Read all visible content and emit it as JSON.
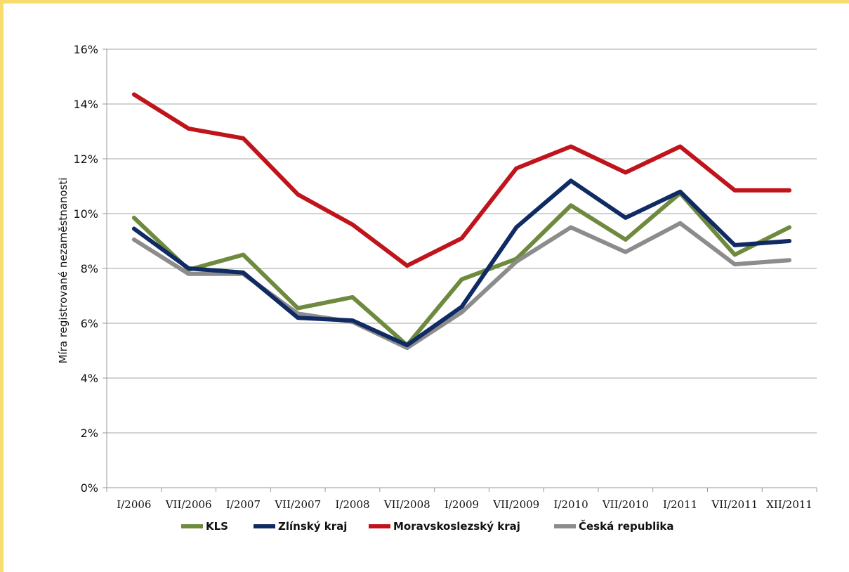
{
  "chart_data": {
    "type": "line",
    "title": "",
    "xlabel": "",
    "ylabel": "Míra registrované nezaměstnanosti",
    "categories": [
      "I/2006",
      "VII/2006",
      "I/2007",
      "VII/2007",
      "I/2008",
      "VII/2008",
      "I/2009",
      "VII/2009",
      "I/2010",
      "VII/2010",
      "I/2011",
      "VII/2011",
      "XII/2011"
    ],
    "ylim": [
      0,
      16
    ],
    "yticks": [
      "0%",
      "2%",
      "4%",
      "6%",
      "8%",
      "10%",
      "12%",
      "14%",
      "16%"
    ],
    "ytick_values": [
      0,
      2,
      4,
      6,
      8,
      10,
      12,
      14,
      16
    ],
    "grid": true,
    "legend_position": "bottom",
    "series": [
      {
        "name": "KLS",
        "color": "#6e8a3e",
        "values": [
          9.85,
          7.95,
          8.5,
          6.55,
          6.95,
          5.2,
          7.6,
          8.35,
          10.3,
          9.05,
          10.75,
          8.5,
          9.5
        ]
      },
      {
        "name": "Zlínský kraj",
        "color": "#102a63",
        "values": [
          9.45,
          8.0,
          7.85,
          6.2,
          6.1,
          5.2,
          6.6,
          9.5,
          11.2,
          9.85,
          10.8,
          8.85,
          9.0
        ]
      },
      {
        "name": "Moravskoslezský kraj",
        "color": "#c0141c",
        "values": [
          14.35,
          13.1,
          12.75,
          10.7,
          9.6,
          8.1,
          9.1,
          11.65,
          12.45,
          11.5,
          12.45,
          10.85,
          10.85
        ]
      },
      {
        "name": "Česká republika",
        "color": "#8c8c8c",
        "values": [
          9.05,
          7.8,
          7.8,
          6.35,
          6.05,
          5.1,
          6.4,
          8.25,
          9.5,
          8.6,
          9.65,
          8.15,
          8.3
        ]
      }
    ]
  }
}
